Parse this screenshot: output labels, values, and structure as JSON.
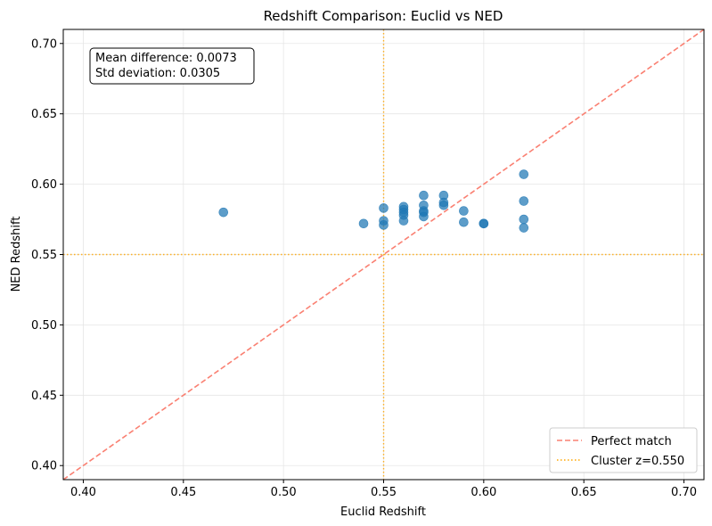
{
  "chart_data": {
    "type": "scatter",
    "title": "Redshift Comparison: Euclid vs NED",
    "xlabel": "Euclid Redshift",
    "ylabel": "NED Redshift",
    "xlim": [
      0.39,
      0.71
    ],
    "ylim": [
      0.39,
      0.71
    ],
    "xticks": [
      "0.40",
      "0.45",
      "0.50",
      "0.55",
      "0.60",
      "0.65",
      "0.70"
    ],
    "yticks": [
      "0.40",
      "0.45",
      "0.50",
      "0.55",
      "0.60",
      "0.65",
      "0.70"
    ],
    "grid": true,
    "legend_position": "bottom-right",
    "colors": {
      "points": "#1f77b4",
      "perfect_match": "#fa8072",
      "cluster": "#ffa500"
    },
    "points": [
      {
        "x": 0.47,
        "y": 0.58
      },
      {
        "x": 0.54,
        "y": 0.572
      },
      {
        "x": 0.55,
        "y": 0.583
      },
      {
        "x": 0.55,
        "y": 0.574
      },
      {
        "x": 0.55,
        "y": 0.571
      },
      {
        "x": 0.56,
        "y": 0.584
      },
      {
        "x": 0.56,
        "y": 0.582
      },
      {
        "x": 0.56,
        "y": 0.58
      },
      {
        "x": 0.56,
        "y": 0.578
      },
      {
        "x": 0.56,
        "y": 0.574
      },
      {
        "x": 0.57,
        "y": 0.592
      },
      {
        "x": 0.57,
        "y": 0.585
      },
      {
        "x": 0.57,
        "y": 0.581
      },
      {
        "x": 0.57,
        "y": 0.58
      },
      {
        "x": 0.57,
        "y": 0.577
      },
      {
        "x": 0.58,
        "y": 0.592
      },
      {
        "x": 0.58,
        "y": 0.587
      },
      {
        "x": 0.58,
        "y": 0.585
      },
      {
        "x": 0.59,
        "y": 0.581
      },
      {
        "x": 0.59,
        "y": 0.573
      },
      {
        "x": 0.6,
        "y": 0.572
      },
      {
        "x": 0.6,
        "y": 0.572
      },
      {
        "x": 0.62,
        "y": 0.607
      },
      {
        "x": 0.62,
        "y": 0.588
      },
      {
        "x": 0.62,
        "y": 0.575
      },
      {
        "x": 0.62,
        "y": 0.569
      }
    ],
    "reference_lines": {
      "perfect_match": {
        "label": "Perfect match",
        "style": "dashed"
      },
      "cluster": {
        "label": "Cluster z=0.550",
        "value": 0.55,
        "style": "dotted"
      }
    },
    "annotation": {
      "line1": "Mean difference: 0.0073",
      "line2": "Std deviation: 0.0305"
    }
  }
}
